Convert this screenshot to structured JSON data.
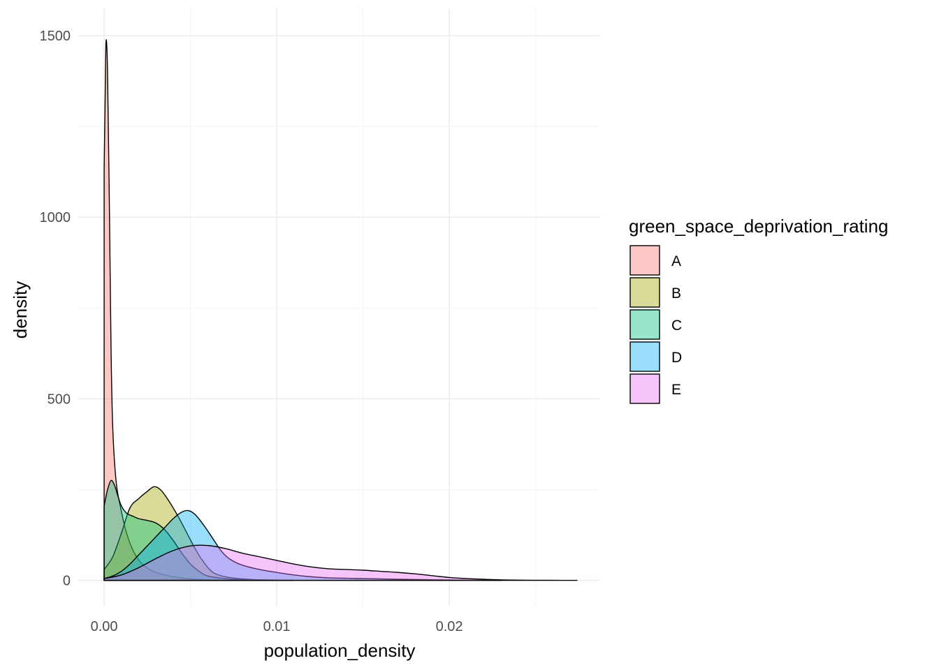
{
  "chart_data": {
    "type": "area",
    "subtype": "density",
    "title": "",
    "xlabel": "population_density",
    "ylabel": "density",
    "xlim": [
      -0.0015,
      0.0287
    ],
    "ylim": [
      -70,
      1575
    ],
    "x_ticks": [
      0.0,
      0.01,
      0.02
    ],
    "x_tick_labels": [
      "0.00",
      "0.01",
      "0.02"
    ],
    "y_ticks": [
      0,
      500,
      1000,
      1500
    ],
    "y_tick_labels": [
      "0",
      "500",
      "1000",
      "1500"
    ],
    "grid": true,
    "fill_alpha": 0.4,
    "legend": {
      "title": "green_space_deprivation_rating",
      "placement": "right"
    },
    "series": [
      {
        "name": "A",
        "color": "#F8766D",
        "points": [
          [
            0.0,
            1130
          ],
          [
            5e-05,
            1300
          ],
          [
            0.0001,
            1470
          ],
          [
            0.00015,
            1475
          ],
          [
            0.0002,
            1390
          ],
          [
            0.0003,
            1050
          ],
          [
            0.0004,
            640
          ],
          [
            0.0005,
            420
          ],
          [
            0.0007,
            270
          ],
          [
            0.001,
            190
          ],
          [
            0.0013,
            130
          ],
          [
            0.0017,
            80
          ],
          [
            0.0022,
            45
          ],
          [
            0.003,
            22
          ],
          [
            0.004,
            10
          ],
          [
            0.005,
            4
          ],
          [
            0.006,
            1.5
          ],
          [
            0.008,
            0
          ]
        ]
      },
      {
        "name": "B",
        "color": "#A3A500",
        "points": [
          [
            0.0,
            30
          ],
          [
            0.0005,
            65
          ],
          [
            0.001,
            130
          ],
          [
            0.0015,
            200
          ],
          [
            0.002,
            225
          ],
          [
            0.0025,
            245
          ],
          [
            0.0029,
            258
          ],
          [
            0.0033,
            248
          ],
          [
            0.0038,
            215
          ],
          [
            0.0043,
            175
          ],
          [
            0.0048,
            130
          ],
          [
            0.0053,
            85
          ],
          [
            0.0058,
            48
          ],
          [
            0.0063,
            22
          ],
          [
            0.007,
            10
          ],
          [
            0.008,
            4
          ],
          [
            0.009,
            1.5
          ],
          [
            0.011,
            0
          ]
        ]
      },
      {
        "name": "C",
        "color": "#00BF7D",
        "points": [
          [
            0.0,
            205
          ],
          [
            0.0002,
            250
          ],
          [
            0.0004,
            275
          ],
          [
            0.0006,
            262
          ],
          [
            0.0008,
            232
          ],
          [
            0.001,
            205
          ],
          [
            0.0013,
            185
          ],
          [
            0.0016,
            178
          ],
          [
            0.002,
            170
          ],
          [
            0.0025,
            165
          ],
          [
            0.003,
            158
          ],
          [
            0.0035,
            140
          ],
          [
            0.004,
            110
          ],
          [
            0.0045,
            75
          ],
          [
            0.005,
            45
          ],
          [
            0.0055,
            25
          ],
          [
            0.006,
            12
          ],
          [
            0.007,
            5
          ],
          [
            0.008,
            2
          ],
          [
            0.01,
            0
          ]
        ]
      },
      {
        "name": "D",
        "color": "#00B0F6",
        "points": [
          [
            0.0,
            5
          ],
          [
            0.0005,
            12
          ],
          [
            0.001,
            25
          ],
          [
            0.0015,
            45
          ],
          [
            0.002,
            70
          ],
          [
            0.0025,
            95
          ],
          [
            0.003,
            120
          ],
          [
            0.0035,
            145
          ],
          [
            0.004,
            170
          ],
          [
            0.0045,
            188
          ],
          [
            0.0049,
            192
          ],
          [
            0.0053,
            180
          ],
          [
            0.0058,
            150
          ],
          [
            0.0063,
            115
          ],
          [
            0.0068,
            80
          ],
          [
            0.0073,
            58
          ],
          [
            0.008,
            42
          ],
          [
            0.009,
            30
          ],
          [
            0.01,
            22
          ],
          [
            0.011,
            15
          ],
          [
            0.012,
            10
          ],
          [
            0.013,
            7
          ],
          [
            0.015,
            5
          ],
          [
            0.017,
            3
          ],
          [
            0.019,
            1.5
          ],
          [
            0.021,
            0.5
          ],
          [
            0.023,
            0
          ]
        ]
      },
      {
        "name": "E",
        "color": "#E76BF3",
        "points": [
          [
            0.0,
            5
          ],
          [
            0.001,
            15
          ],
          [
            0.002,
            35
          ],
          [
            0.003,
            60
          ],
          [
            0.004,
            82
          ],
          [
            0.005,
            95
          ],
          [
            0.006,
            96
          ],
          [
            0.007,
            88
          ],
          [
            0.008,
            75
          ],
          [
            0.009,
            65
          ],
          [
            0.01,
            55
          ],
          [
            0.011,
            45
          ],
          [
            0.012,
            37
          ],
          [
            0.013,
            32
          ],
          [
            0.014,
            30
          ],
          [
            0.015,
            28
          ],
          [
            0.016,
            25
          ],
          [
            0.017,
            22
          ],
          [
            0.018,
            18
          ],
          [
            0.019,
            13
          ],
          [
            0.02,
            8
          ],
          [
            0.021,
            5
          ],
          [
            0.022,
            3
          ],
          [
            0.023,
            1.5
          ],
          [
            0.024,
            0.7
          ],
          [
            0.025,
            0.3
          ],
          [
            0.0265,
            0.1
          ],
          [
            0.0274,
            0
          ]
        ]
      }
    ]
  }
}
